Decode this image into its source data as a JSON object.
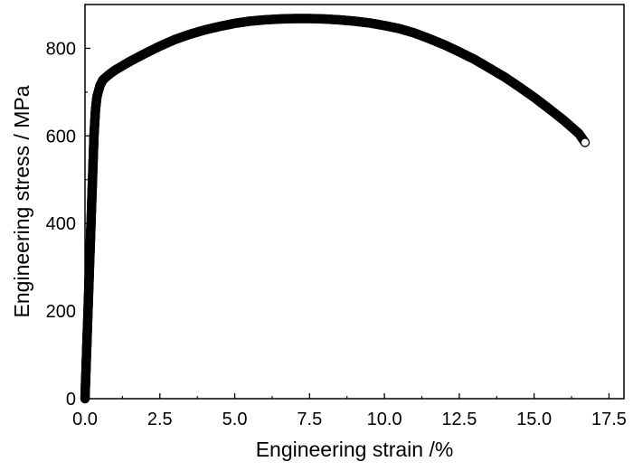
{
  "chart_data": {
    "type": "scatter",
    "title": "",
    "xlabel": "Engineering strain /%",
    "ylabel": "Engineering stress / MPa",
    "xlim": [
      0,
      18
    ],
    "ylim": [
      0,
      900
    ],
    "xticks": [
      0,
      2.5,
      5,
      7.5,
      10,
      12.5,
      15,
      17.5
    ],
    "xtick_labels": [
      "0.0",
      "2.5",
      "5.0",
      "7.5",
      "10.0",
      "12.5",
      "15.0",
      "17.5"
    ],
    "yticks": [
      0,
      200,
      400,
      600,
      800
    ],
    "ytick_labels": [
      "0",
      "200",
      "400",
      "600",
      "800"
    ],
    "grid": false,
    "legend": false,
    "marker": "open-circle",
    "marker_color": "#000000",
    "series": [
      {
        "x": [
          0.0,
          0.05,
          0.1,
          0.15,
          0.2,
          0.25,
          0.3,
          0.35,
          0.4,
          0.5,
          0.6,
          0.8,
          1.0,
          1.25,
          1.5,
          2.0,
          2.5,
          3.0,
          3.5,
          4.0,
          4.5,
          5.0,
          5.5,
          6.0,
          6.5,
          7.0,
          7.5,
          8.0,
          8.5,
          9.0,
          9.5,
          10.0,
          10.5,
          11.0,
          11.5,
          12.0,
          12.5,
          13.0,
          13.5,
          14.0,
          14.5,
          15.0,
          15.5,
          16.0,
          16.5,
          16.7
        ],
        "y": [
          0,
          100,
          200,
          300,
          400,
          500,
          600,
          660,
          690,
          715,
          728,
          740,
          750,
          760,
          770,
          788,
          805,
          820,
          832,
          842,
          850,
          857,
          862,
          865,
          867,
          868,
          868,
          867,
          865,
          862,
          858,
          852,
          845,
          835,
          822,
          808,
          792,
          775,
          755,
          735,
          712,
          688,
          662,
          635,
          605,
          585
        ]
      }
    ]
  }
}
